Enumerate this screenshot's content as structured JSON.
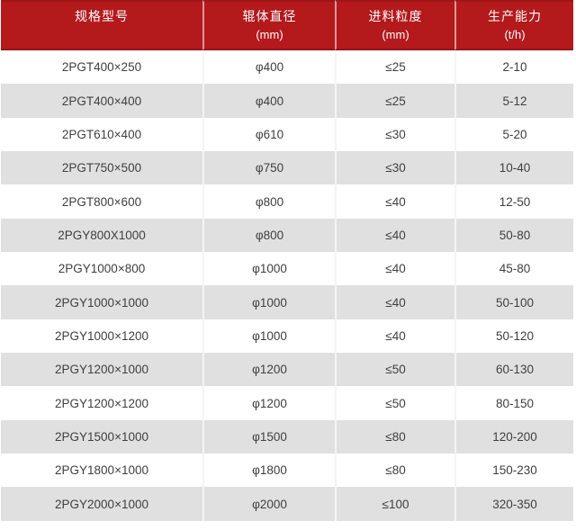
{
  "colors": {
    "header_bg": "#b4191c",
    "header_top_border": "#9e1518",
    "header_bottom_border": "#9a1417",
    "header_divider": "rgba(255,255,255,0.55)",
    "header_text": "#ffffff",
    "row_bg": "#ffffff",
    "row_alt_bg": "#e0e0e0",
    "row_divider": "#f4f4f4",
    "text": "#3f3f3f"
  },
  "chart_data": {
    "type": "table",
    "title": "",
    "columns": [
      {
        "label": "规格型号",
        "unit": ""
      },
      {
        "label": "辊体直径",
        "unit": "(mm)"
      },
      {
        "label": "进料粒度",
        "unit": "(mm)"
      },
      {
        "label": "生产能力",
        "unit": "(t/h)"
      }
    ],
    "rows": [
      [
        "2PGT400×250",
        "φ400",
        "≤25",
        "2-10"
      ],
      [
        "2PGT400×400",
        "φ400",
        "≤25",
        "5-12"
      ],
      [
        "2PGT610×400",
        "φ610",
        "≤30",
        "5-20"
      ],
      [
        "2PGT750×500",
        "φ750",
        "≤30",
        "10-40"
      ],
      [
        "2PGT800×600",
        "φ800",
        "≤40",
        "12-50"
      ],
      [
        "2PGY800X1000",
        "φ800",
        "≤40",
        "50-80"
      ],
      [
        "2PGY1000×800",
        "φ1000",
        "≤40",
        "45-80"
      ],
      [
        "2PGY1000×1000",
        "φ1000",
        "≤40",
        "50-100"
      ],
      [
        "2PGY1000×1200",
        "φ1000",
        "≤40",
        "50-120"
      ],
      [
        "2PGY1200×1000",
        "φ1200",
        "≤50",
        "60-130"
      ],
      [
        "2PGY1200×1200",
        "φ1200",
        "≤50",
        "80-150"
      ],
      [
        "2PGY1500×1000",
        "φ1500",
        "≤80",
        "120-200"
      ],
      [
        "2PGY1800×1000",
        "φ1800",
        "≤80",
        "150-230"
      ],
      [
        "2PGY2000×1000",
        "φ2000",
        "≤100",
        "320-350"
      ]
    ]
  }
}
